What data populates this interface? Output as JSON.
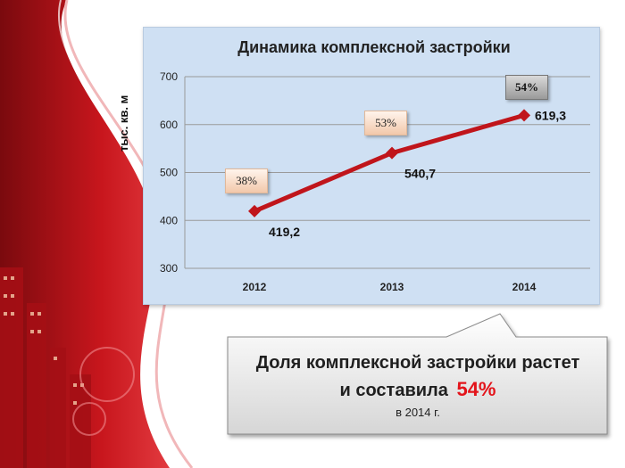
{
  "chart_data": {
    "type": "line",
    "title": "Динамика комплексной застройки",
    "ylabel": "тыс. кв. м",
    "xlabel": "",
    "categories": [
      "2012",
      "2013",
      "2014"
    ],
    "series": [
      {
        "values": [
          419.2,
          540.7,
          619.3
        ],
        "value_labels": [
          "419,2",
          "540,7",
          "619,3"
        ]
      }
    ],
    "point_annotations": [
      "38%",
      "53%",
      "54%"
    ],
    "ylim": [
      300,
      700
    ],
    "yticks": [
      300,
      400,
      500,
      600,
      700
    ],
    "grid": true,
    "legend": "none",
    "line_color": "#c0151b"
  },
  "callout": {
    "line1": "Доля комплексной застройки растет",
    "line2_prefix": "и составила",
    "highlight": "54%",
    "sub": "в 2014 г.",
    "highlight_color": "#e3141b"
  },
  "decor": {
    "accent_color": "#c41a1f"
  }
}
